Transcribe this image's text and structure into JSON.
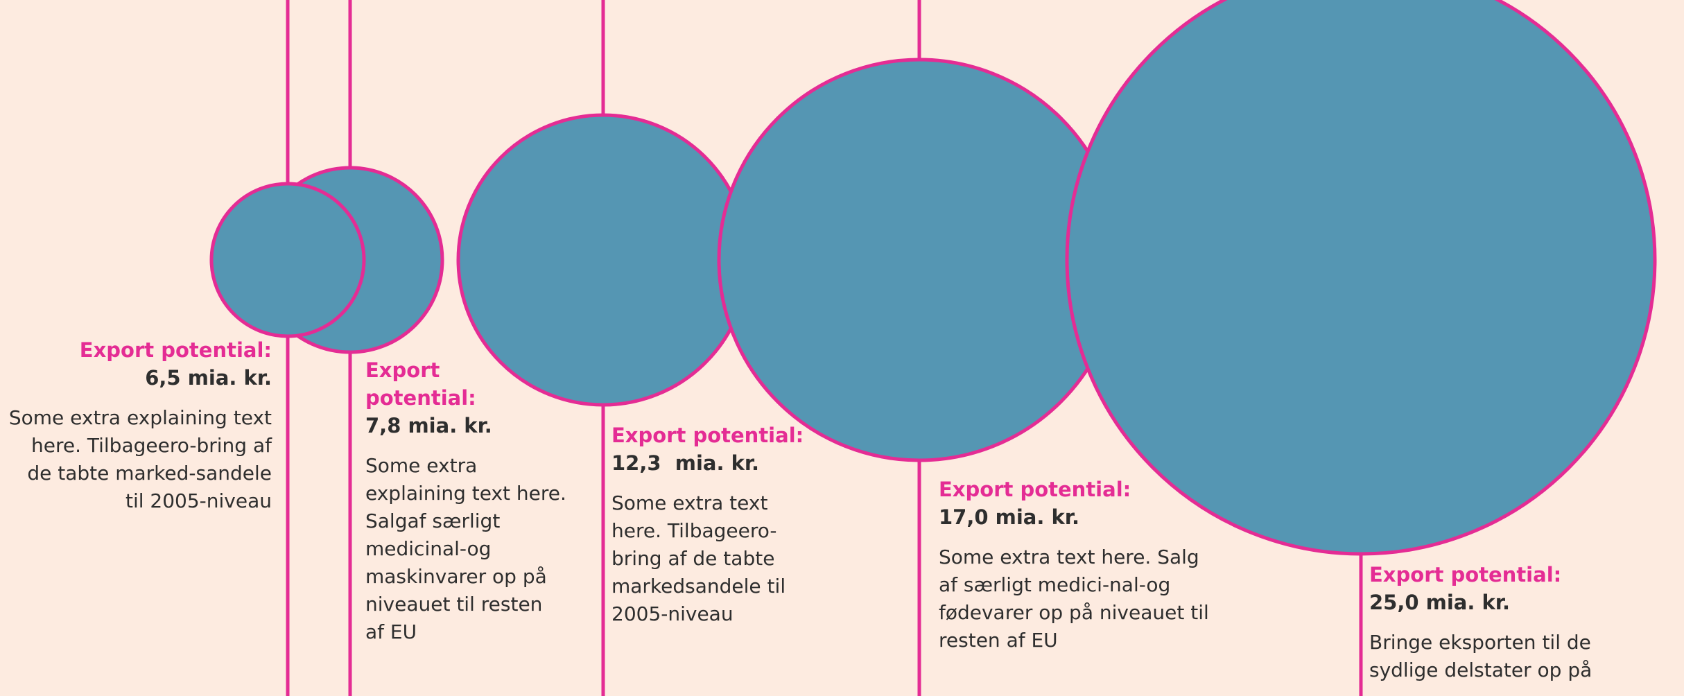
{
  "colors": {
    "background": "#FDEBE0",
    "bubble_fill": "#5596B3",
    "accent": "#E42C94",
    "text": "#2E2E2E"
  },
  "items": [
    {
      "title": "Export potential:",
      "value": "6,5 mia. kr.",
      "value_num": 6.5,
      "desc": "Some extra explaining text here. Tilbageero-bring af de tabte marked-sandele til 2005-niveau"
    },
    {
      "title": "Export potential:",
      "value": "7,8 mia. kr.",
      "value_num": 7.8,
      "desc": "Some extra explaining text here. Salgaf særligt medicinal-og maskinvarer op på niveauet til resten af EU"
    },
    {
      "title": "Export potential:",
      "value": "12,3  mia. kr.",
      "value_num": 12.3,
      "desc": "Some extra text here. Tilbageero-bring af de tabte markedsandele til 2005-niveau"
    },
    {
      "title": "Export potential:",
      "value": "17,0 mia. kr.",
      "value_num": 17.0,
      "desc": "Some extra text here. Salg af særligt medici-nal-og fødevarer op på niveauet til resten af EU"
    },
    {
      "title": "Export potential:",
      "value": "25,0 mia. kr.",
      "value_num": 25.0,
      "desc": "Bringe eksporten til de sydlige delstater op på"
    }
  ]
}
